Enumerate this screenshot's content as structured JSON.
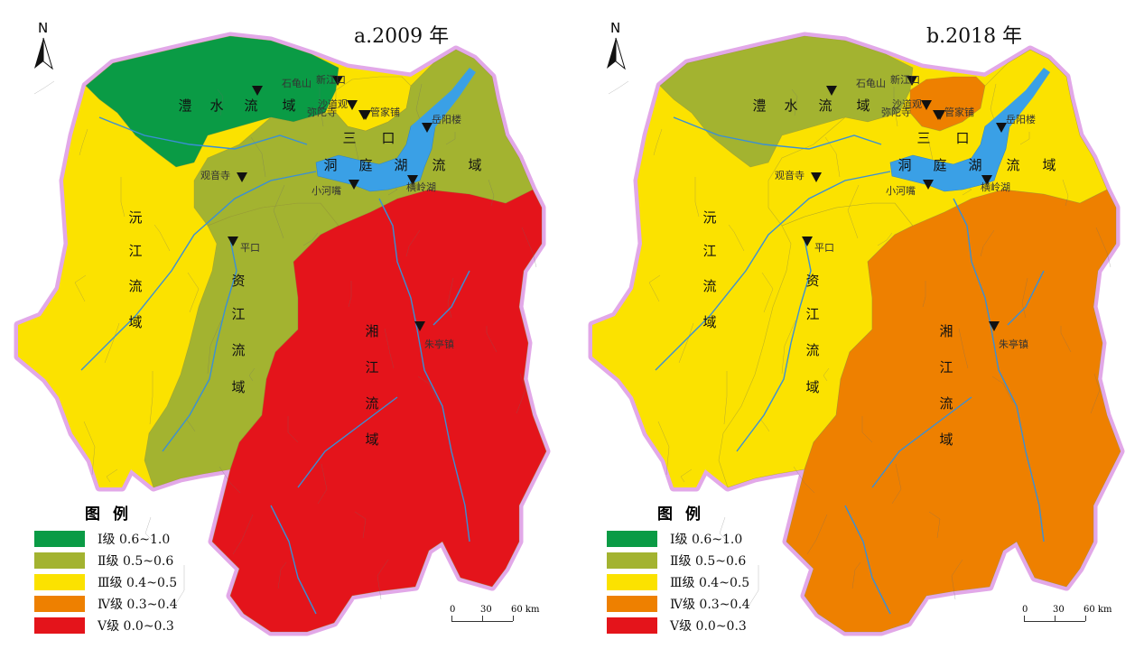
{
  "panels": [
    {
      "title": "a.2009 年",
      "north": "N",
      "regions": {
        "lishui": "#0a9b45",
        "yuanjiang": "#fbe200",
        "zijiang": "#a3b330",
        "xiangjiang": "#e4141b",
        "sankou": "#fbe200",
        "dongting": "#a3b330"
      }
    },
    {
      "title": "b.2018 年",
      "north": "N",
      "regions": {
        "lishui": "#a3b330",
        "yuanjiang": "#fbe200",
        "zijiang": "#fbe200",
        "xiangjiang": "#ee8000",
        "sankou": "#ee8000",
        "dongting": "#fbe200"
      }
    }
  ],
  "basin_labels": {
    "lishui": [
      "澧",
      "水",
      "流",
      "域"
    ],
    "yuanjiang": [
      "沅",
      "江",
      "流",
      "域"
    ],
    "zijiang": [
      "资",
      "江",
      "流",
      "域"
    ],
    "xiangjiang": [
      "湘",
      "江",
      "流",
      "域"
    ],
    "sankou": [
      "三",
      "口"
    ],
    "dongting": [
      "洞",
      "庭",
      "湖",
      "流",
      "域"
    ]
  },
  "stations": [
    "石龟山",
    "新江口",
    "沙道观",
    "弥陀寺",
    "管家铺",
    "岳阳楼",
    "观音寺",
    "小河嘴",
    "横岭湖",
    "平口",
    "朱亭镇"
  ],
  "legend": {
    "title": "图例",
    "items": [
      {
        "label": "Ⅰ级 0.6~1.0",
        "color": "#0a9b45"
      },
      {
        "label": "Ⅱ级 0.5~0.6",
        "color": "#a3b330"
      },
      {
        "label": "Ⅲ级 0.4~0.5",
        "color": "#fbe200"
      },
      {
        "label": "Ⅳ级 0.3~0.4",
        "color": "#ee8000"
      },
      {
        "label": "Ⅴ级 0.0~0.3",
        "color": "#e4141b"
      }
    ]
  },
  "scale": {
    "ticks": [
      "0",
      "30",
      "60 km"
    ]
  },
  "colors": {
    "lake": "#3aa0e6",
    "border": "#e2a8e8",
    "river": "#3a8fd6"
  }
}
